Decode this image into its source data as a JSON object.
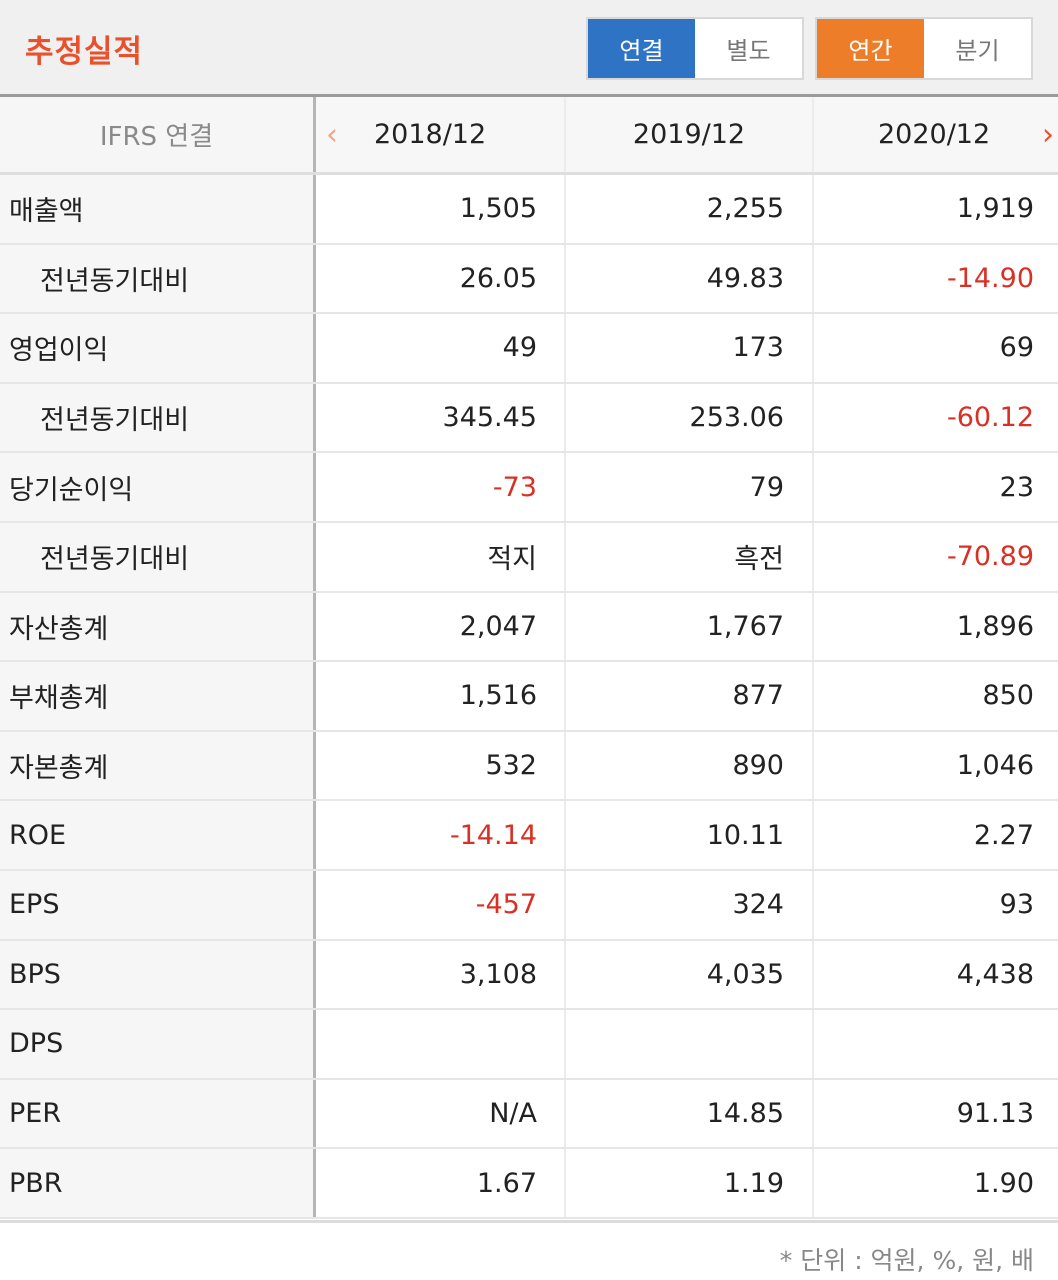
{
  "header": {
    "title": "추정실적",
    "toggle1": {
      "options": [
        "연결",
        "별도"
      ],
      "selected": "연결"
    },
    "toggle2": {
      "options": [
        "연간",
        "분기"
      ],
      "selected": "연간"
    }
  },
  "table": {
    "corner_label": "IFRS 연결",
    "columns": [
      "2018/12",
      "2019/12",
      "2020/12"
    ],
    "rows": [
      {
        "label": "매출액",
        "sub": false,
        "values": [
          "1,505",
          "2,255",
          "1,919"
        ]
      },
      {
        "label": "전년동기대비",
        "sub": true,
        "values": [
          "26.05",
          "49.83",
          "-14.90"
        ]
      },
      {
        "label": "영업이익",
        "sub": false,
        "values": [
          "49",
          "173",
          "69"
        ]
      },
      {
        "label": "전년동기대비",
        "sub": true,
        "values": [
          "345.45",
          "253.06",
          "-60.12"
        ]
      },
      {
        "label": "당기순이익",
        "sub": false,
        "values": [
          "-73",
          "79",
          "23"
        ]
      },
      {
        "label": "전년동기대비",
        "sub": true,
        "values": [
          "적지",
          "흑전",
          "-70.89"
        ]
      },
      {
        "label": "자산총계",
        "sub": false,
        "values": [
          "2,047",
          "1,767",
          "1,896"
        ]
      },
      {
        "label": "부채총계",
        "sub": false,
        "values": [
          "1,516",
          "877",
          "850"
        ]
      },
      {
        "label": "자본총계",
        "sub": false,
        "values": [
          "532",
          "890",
          "1,046"
        ]
      },
      {
        "label": "ROE",
        "sub": false,
        "values": [
          "-14.14",
          "10.11",
          "2.27"
        ]
      },
      {
        "label": "EPS",
        "sub": false,
        "values": [
          "-457",
          "324",
          "93"
        ]
      },
      {
        "label": "BPS",
        "sub": false,
        "values": [
          "3,108",
          "4,035",
          "4,438"
        ]
      },
      {
        "label": "DPS",
        "sub": false,
        "values": [
          "",
          "",
          ""
        ]
      },
      {
        "label": "PER",
        "sub": false,
        "values": [
          "N/A",
          "14.85",
          "91.13"
        ]
      },
      {
        "label": "PBR",
        "sub": false,
        "values": [
          "1.67",
          "1.19",
          "1.90"
        ]
      }
    ]
  },
  "footer": {
    "unit_note": "* 단위 : 억원, %, 원, 배"
  },
  "colors": {
    "title": "#e8512c",
    "blue_active": "#2f73c4",
    "orange_active": "#ee7d2a",
    "negative": "#d93025"
  },
  "icons": {
    "prev": "chevron-left-icon",
    "next": "chevron-right-icon"
  }
}
